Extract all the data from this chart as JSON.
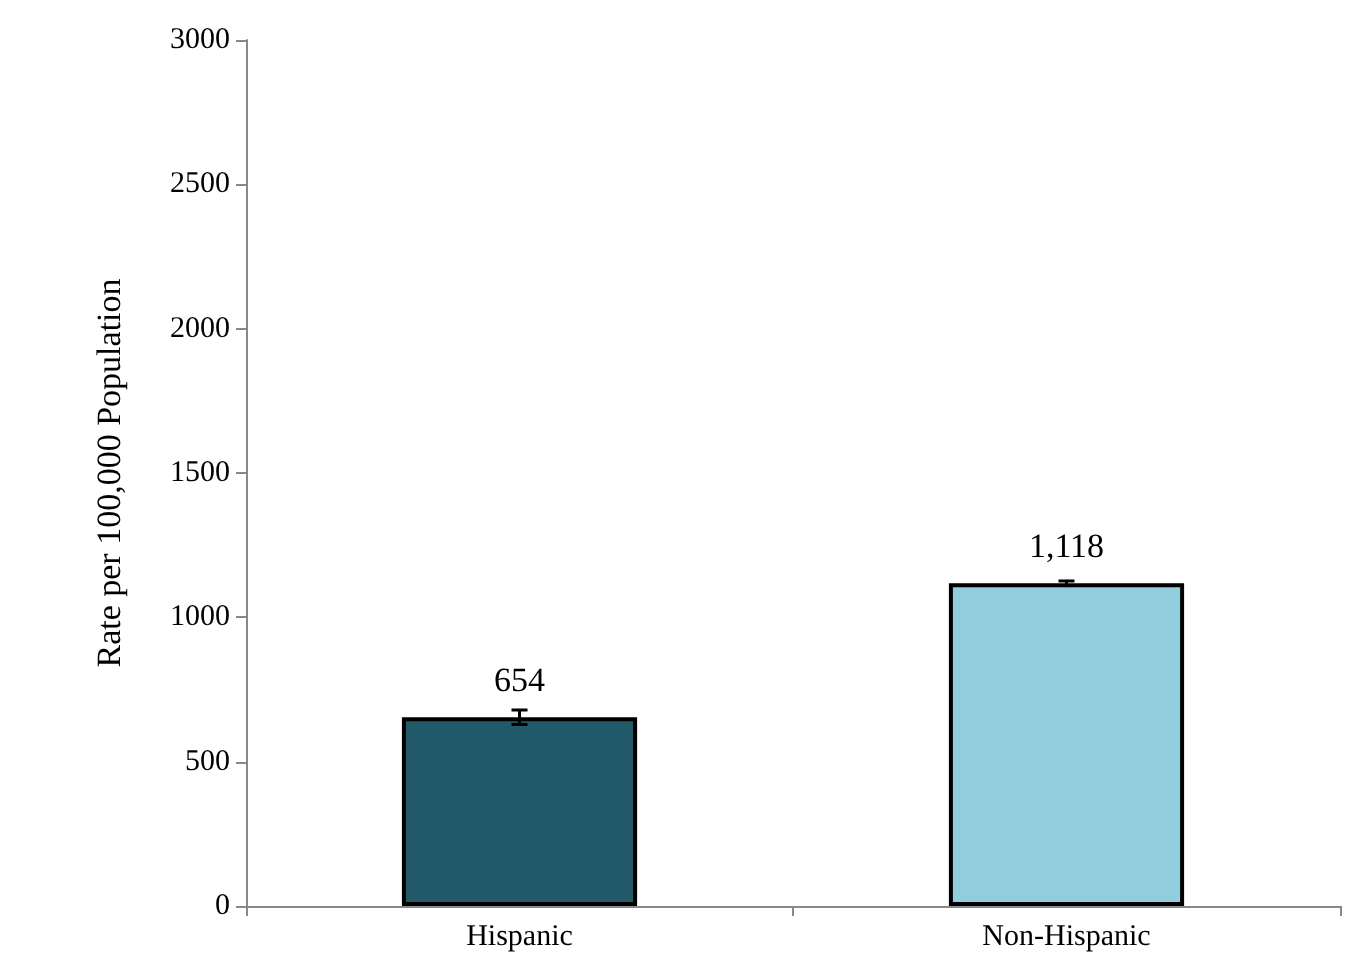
{
  "chart_data": {
    "type": "bar",
    "ylabel": "Rate per 100,000 Population",
    "categories": [
      "Hispanic",
      "Non-Hispanic"
    ],
    "values": [
      654,
      1118
    ],
    "colors": [
      "#235a69",
      "#92cddd"
    ],
    "errors": [
      25,
      8
    ],
    "value_labels": [
      "654",
      "1,118"
    ],
    "ylim": [
      0,
      3000
    ],
    "yticks": [
      0,
      500,
      1000,
      1500,
      2000,
      2500,
      3000
    ],
    "grid": false
  }
}
